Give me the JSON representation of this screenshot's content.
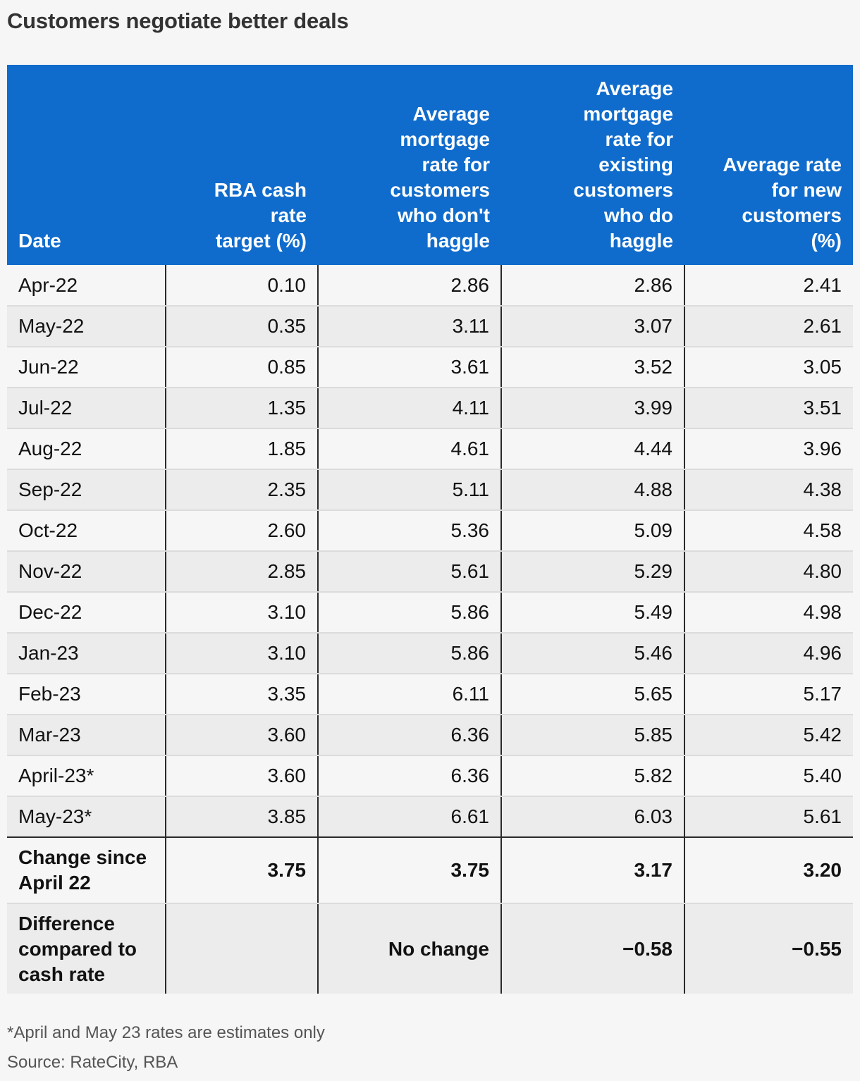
{
  "title": "Customers negotiate better deals",
  "colors": {
    "header_bg": "#106ccc",
    "header_text": "#ffffff",
    "row_alt_bg": "#ececec",
    "page_bg": "#f6f6f6"
  },
  "chart_data": {
    "type": "table",
    "title": "Customers negotiate better deals",
    "columns": [
      [
        "Date"
      ],
      [
        "RBA cash",
        "rate",
        "target (%)"
      ],
      [
        "Average",
        "mortgage",
        "rate for",
        "customers",
        "who don't",
        "haggle"
      ],
      [
        "Average",
        "mortgage",
        "rate for",
        "existing",
        "customers",
        "who do",
        "haggle"
      ],
      [
        "Average rate",
        "for new",
        "customers",
        "(%)"
      ]
    ],
    "rows": [
      [
        "Apr-22",
        "0.10",
        "2.86",
        "2.86",
        "2.41"
      ],
      [
        "May-22",
        "0.35",
        "3.11",
        "3.07",
        "2.61"
      ],
      [
        "Jun-22",
        "0.85",
        "3.61",
        "3.52",
        "3.05"
      ],
      [
        "Jul-22",
        "1.35",
        "4.11",
        "3.99",
        "3.51"
      ],
      [
        "Aug-22",
        "1.85",
        "4.61",
        "4.44",
        "3.96"
      ],
      [
        "Sep-22",
        "2.35",
        "5.11",
        "4.88",
        "4.38"
      ],
      [
        "Oct-22",
        "2.60",
        "5.36",
        "5.09",
        "4.58"
      ],
      [
        "Nov-22",
        "2.85",
        "5.61",
        "5.29",
        "4.80"
      ],
      [
        "Dec-22",
        "3.10",
        "5.86",
        "5.49",
        "4.98"
      ],
      [
        "Jan-23",
        "3.10",
        "5.86",
        "5.46",
        "4.96"
      ],
      [
        "Feb-23",
        "3.35",
        "6.11",
        "5.65",
        "5.17"
      ],
      [
        "Mar-23",
        "3.60",
        "6.36",
        "5.85",
        "5.42"
      ],
      [
        "April-23*",
        "3.60",
        "6.36",
        "5.82",
        "5.40"
      ],
      [
        "May-23*",
        "3.85",
        "6.61",
        "6.03",
        "5.61"
      ]
    ],
    "summary_rows": [
      {
        "label": [
          "Change since",
          "April 22"
        ],
        "values": [
          "3.75",
          "3.75",
          "3.17",
          "3.20"
        ]
      },
      {
        "label": [
          "Difference",
          "compared to",
          "cash rate"
        ],
        "values": [
          "",
          "No change",
          "−0.58",
          "−0.55"
        ]
      }
    ]
  },
  "footnote": "*April and May 23 rates are estimates only",
  "source": "Source: RateCity, RBA"
}
